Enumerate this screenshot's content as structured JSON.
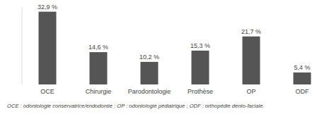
{
  "chart_data": {
    "type": "bar",
    "categories": [
      "OCE",
      "Chirurgie",
      "Parodontologie",
      "Prothèse",
      "OP",
      "ODF"
    ],
    "values": [
      32.9,
      14.6,
      10.2,
      15.3,
      21.7,
      5.4
    ],
    "value_labels": [
      "32,9 %",
      "14,6 %",
      "10,2 %",
      "15,3 %",
      "21,7 %",
      "5,4 %"
    ],
    "color": "#555555",
    "ylim": [
      0,
      35
    ],
    "yticks": [],
    "grid": false,
    "tick_labels": "x",
    "data_labels": true,
    "annotations": [
      "OCE : odontologie conservatrice/endodontie ; OP : odontologie pédiatrique ; ODF : orthopédie dento-faciale."
    ]
  }
}
